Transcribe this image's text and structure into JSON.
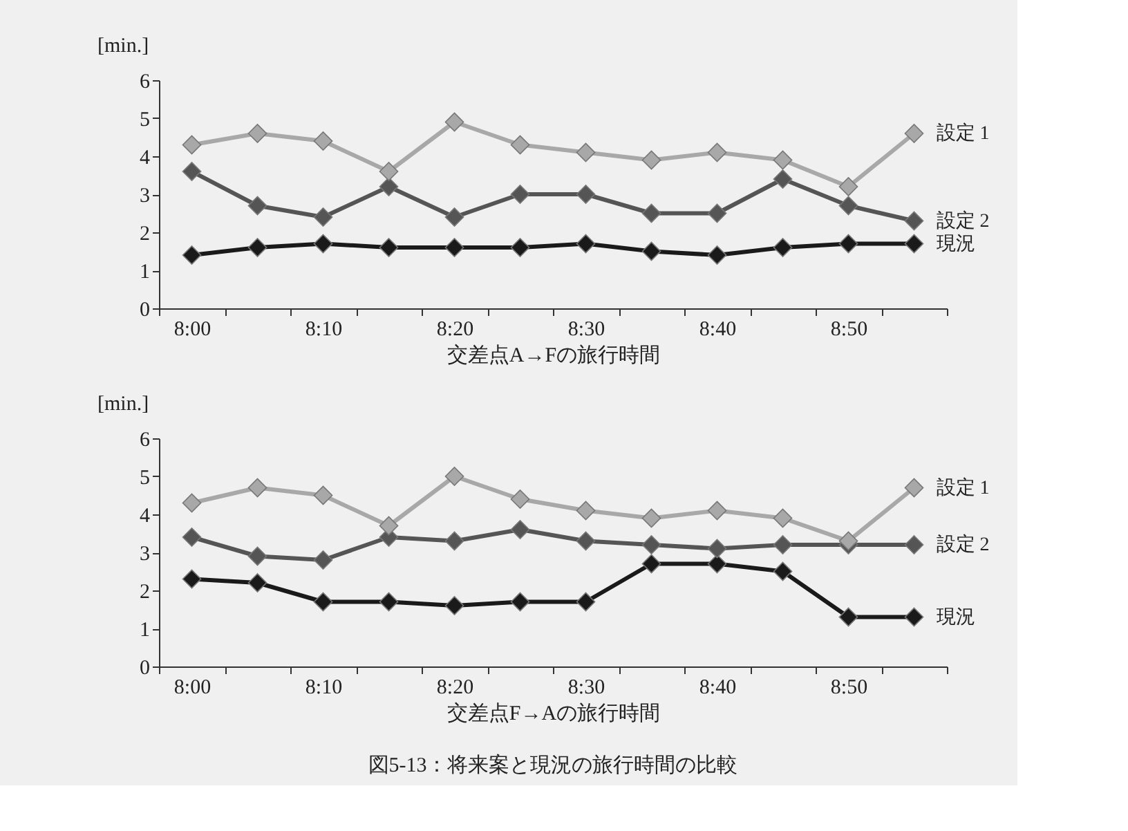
{
  "chart_data": [
    {
      "type": "line",
      "ylabel": "[min.]",
      "xlabel": "交差点A→Fの旅行時間",
      "marker": "diamond",
      "line_style": "solid",
      "categories": [
        "8:00",
        null,
        "8:10",
        null,
        "8:20",
        null,
        "8:30",
        null,
        "8:40",
        null,
        "8:50",
        null
      ],
      "ylim": [
        0,
        6
      ],
      "yticks": [
        0,
        1,
        2,
        3,
        4,
        5,
        6
      ],
      "series": [
        {
          "name": "設定 1",
          "color": "#a8a8a8",
          "values": [
            4.3,
            4.6,
            4.4,
            3.6,
            4.9,
            4.3,
            4.1,
            3.9,
            4.1,
            3.9,
            3.2,
            4.6
          ]
        },
        {
          "name": "設定 2",
          "color": "#555555",
          "values": [
            3.6,
            2.7,
            2.4,
            3.2,
            2.4,
            3.0,
            3.0,
            2.5,
            2.5,
            3.4,
            2.7,
            2.3
          ]
        },
        {
          "name": "現況",
          "color": "#1a1a1a",
          "values": [
            1.4,
            1.6,
            1.7,
            1.6,
            1.6,
            1.6,
            1.7,
            1.5,
            1.4,
            1.6,
            1.7,
            1.7
          ]
        }
      ]
    },
    {
      "type": "line",
      "ylabel": "[min.]",
      "xlabel": "交差点F→Aの旅行時間",
      "marker": "diamond",
      "line_style": "solid",
      "categories": [
        "8:00",
        null,
        "8:10",
        null,
        "8:20",
        null,
        "8:30",
        null,
        "8:40",
        null,
        "8:50",
        null
      ],
      "ylim": [
        0,
        6
      ],
      "yticks": [
        0,
        1,
        2,
        3,
        4,
        5,
        6
      ],
      "annotations": [
        "図5-13：将来案と現況の旅行時間の比較"
      ],
      "series": [
        {
          "name": "設定 1",
          "color": "#a8a8a8",
          "values": [
            4.3,
            4.7,
            4.5,
            3.7,
            5.0,
            4.4,
            4.1,
            3.9,
            4.1,
            3.9,
            3.3,
            4.7
          ]
        },
        {
          "name": "設定 2",
          "color": "#555555",
          "values": [
            3.4,
            2.9,
            2.8,
            3.4,
            3.3,
            3.6,
            3.3,
            3.2,
            3.1,
            3.2,
            3.2,
            3.2
          ]
        },
        {
          "name": "現況",
          "color": "#1a1a1a",
          "values": [
            2.3,
            2.2,
            1.7,
            1.7,
            1.6,
            1.7,
            1.7,
            2.7,
            2.7,
            2.5,
            1.3,
            1.3
          ]
        }
      ]
    }
  ]
}
